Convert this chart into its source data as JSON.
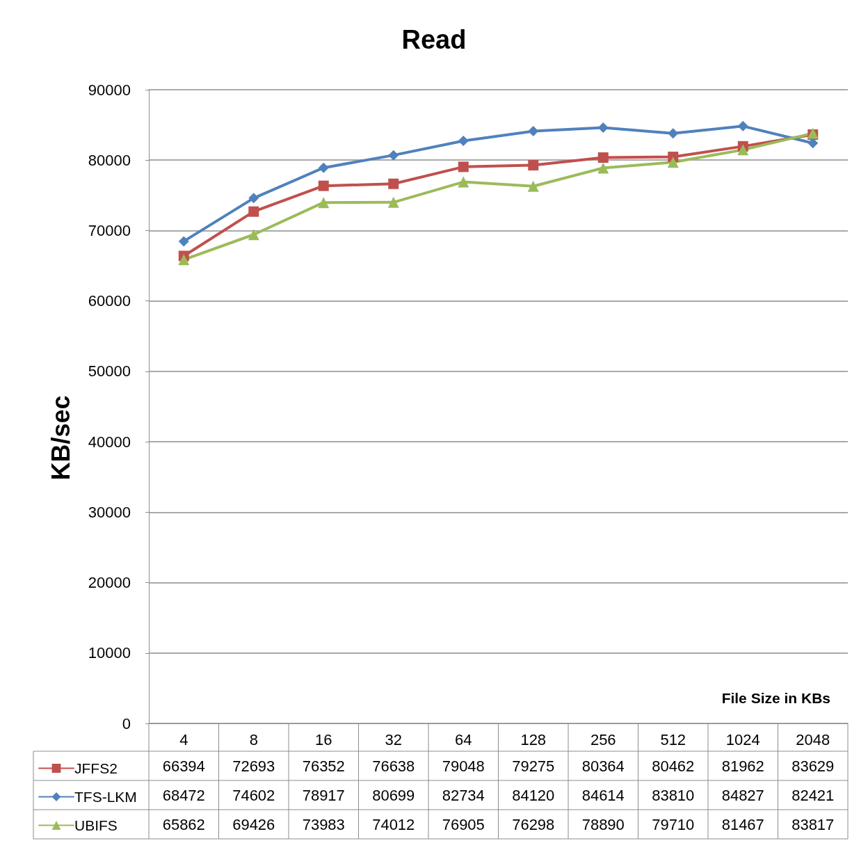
{
  "chart_data": {
    "type": "line",
    "title": "Read",
    "xlabel": "File Size in KBs",
    "ylabel": "KB/sec",
    "categories": [
      "4",
      "8",
      "16",
      "32",
      "64",
      "128",
      "256",
      "512",
      "1024",
      "2048"
    ],
    "series": [
      {
        "name": "JFFS2",
        "color": "#c0504d",
        "marker": "square",
        "values": [
          66394,
          72693,
          76352,
          76638,
          79048,
          79275,
          80364,
          80462,
          81962,
          83629
        ]
      },
      {
        "name": "TFS-LKM",
        "color": "#4f81bd",
        "marker": "diamond",
        "values": [
          68472,
          74602,
          78917,
          80699,
          82734,
          84120,
          84614,
          83810,
          84827,
          82421
        ]
      },
      {
        "name": "UBIFS",
        "color": "#9bbb59",
        "marker": "triangle",
        "values": [
          65862,
          69426,
          73983,
          74012,
          76905,
          76298,
          78890,
          79710,
          81467,
          83817
        ]
      }
    ],
    "ylim": [
      0,
      90000
    ],
    "yticks": [
      0,
      10000,
      20000,
      30000,
      40000,
      50000,
      60000,
      70000,
      80000,
      90000
    ],
    "grid": "y",
    "legend": "bottom",
    "data_labels": true,
    "line_style": "solid"
  }
}
